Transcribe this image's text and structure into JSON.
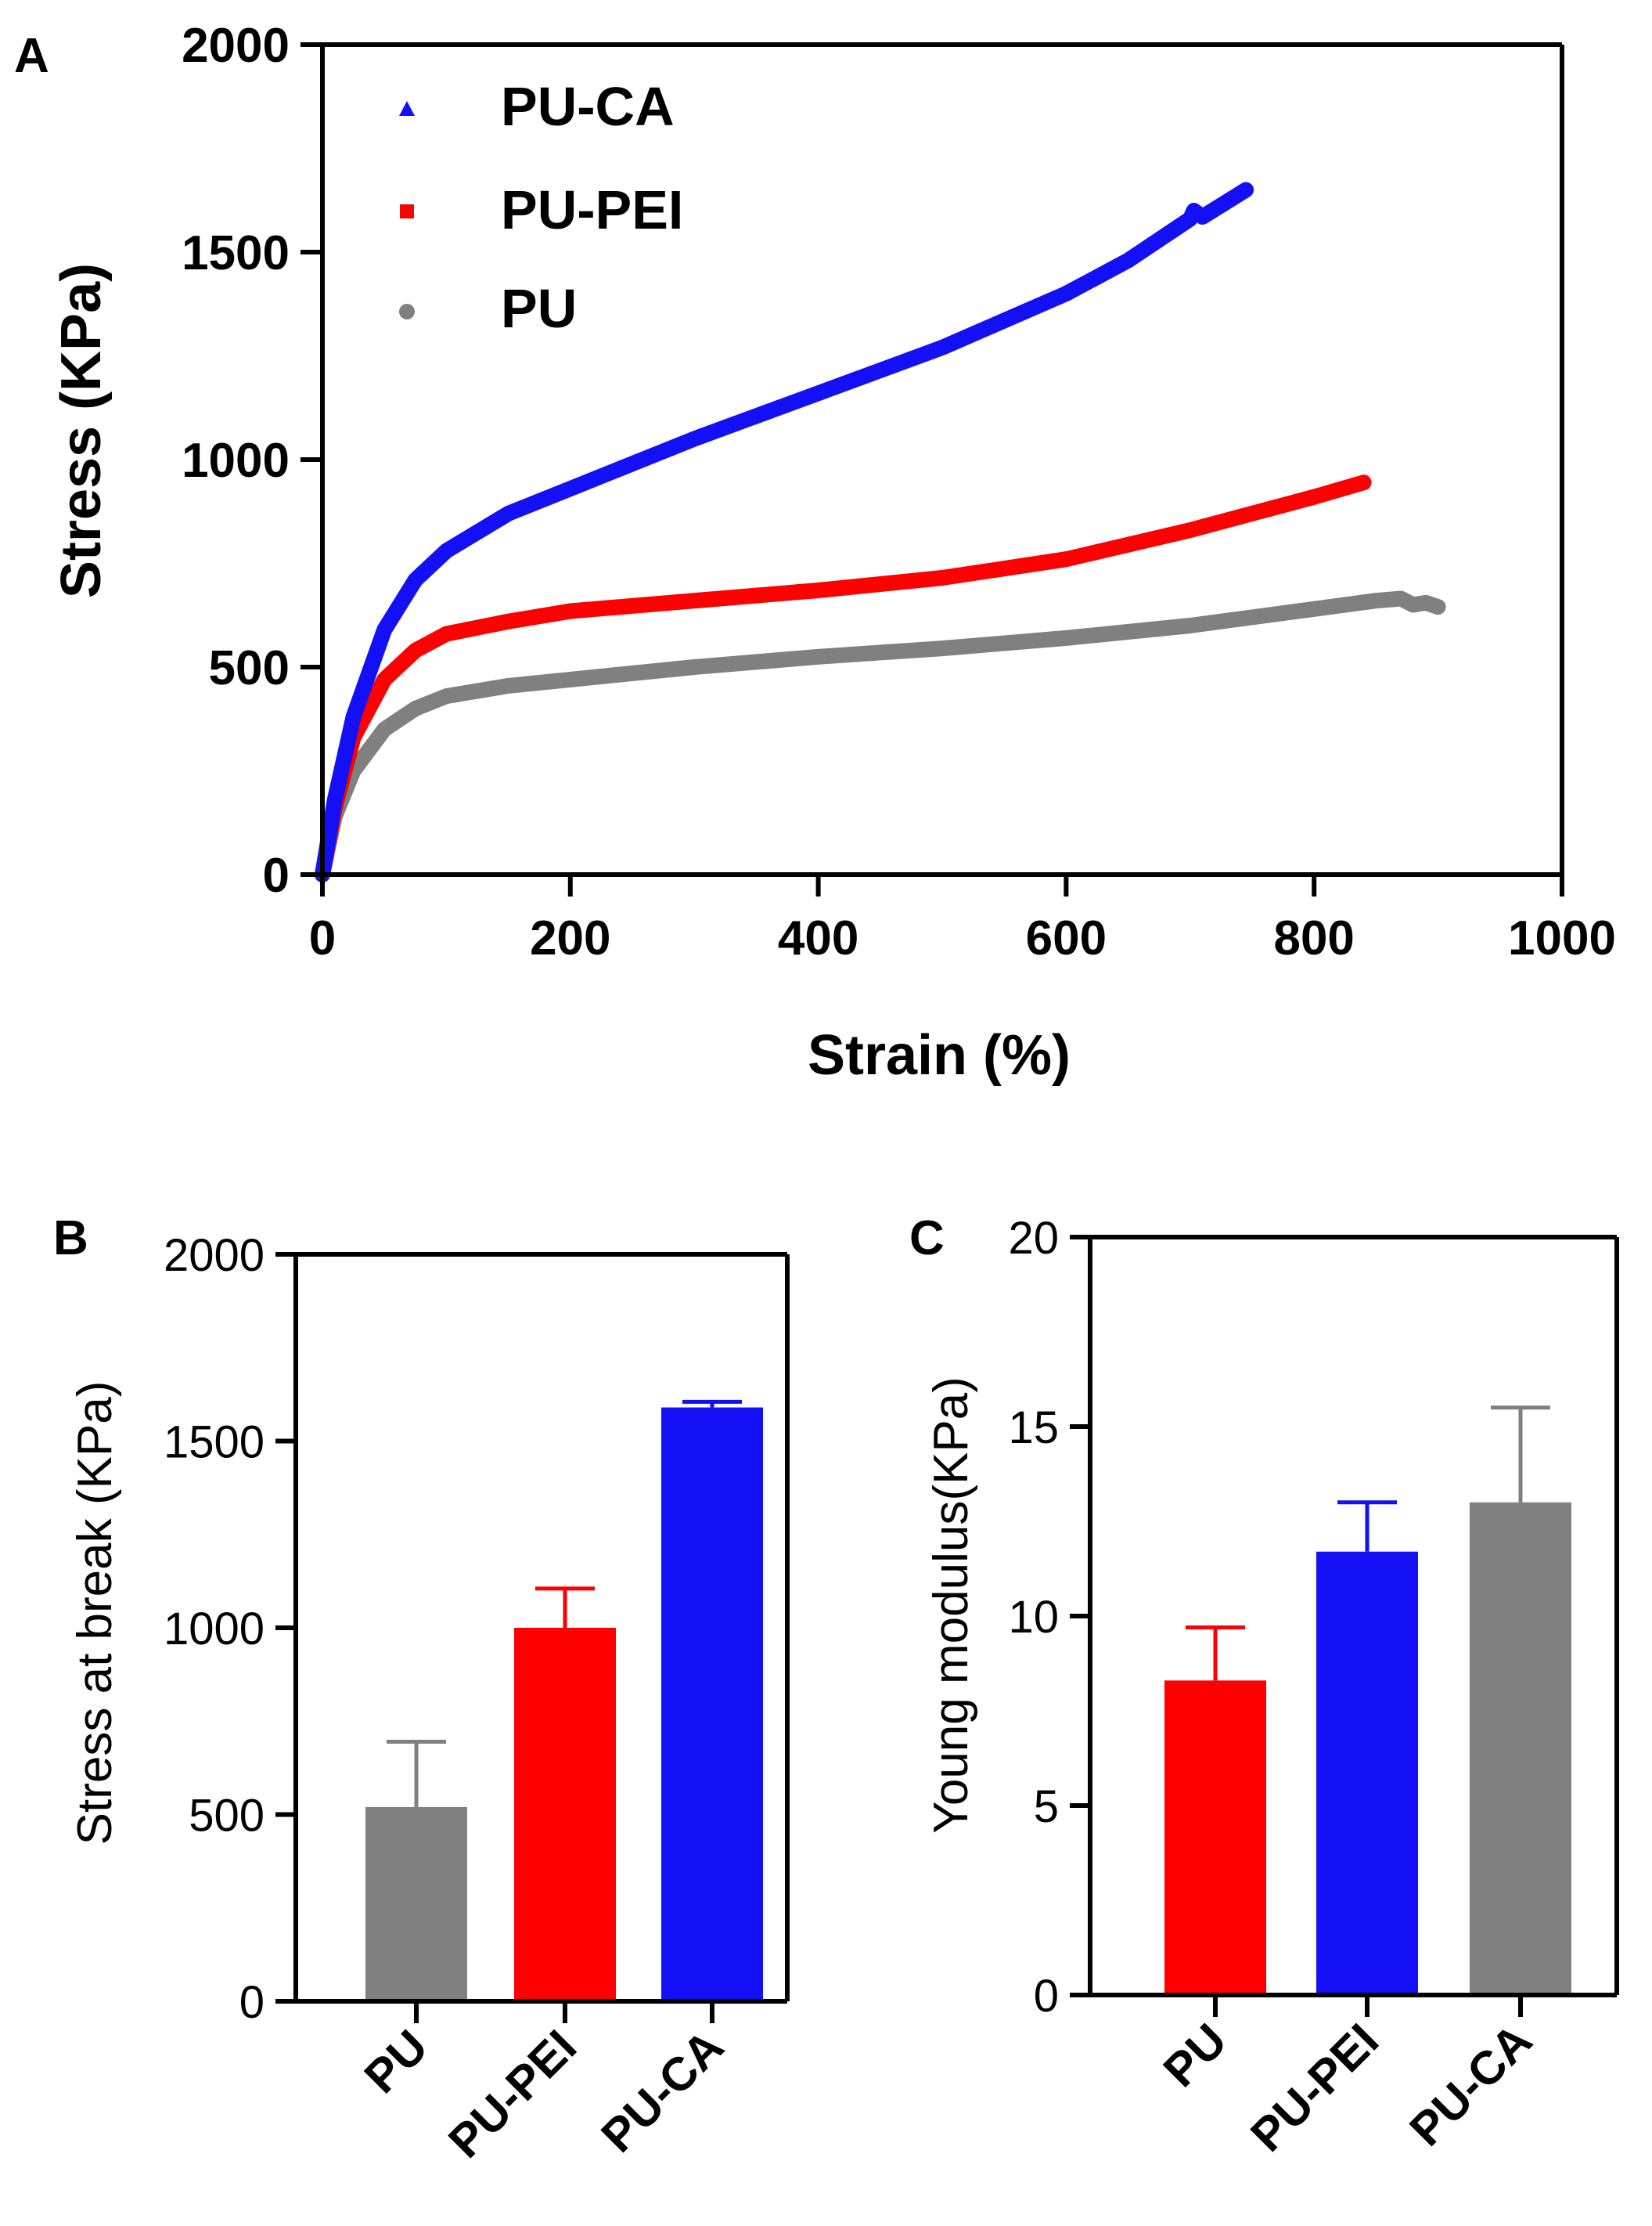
{
  "colors": {
    "blue": "#1410f5",
    "red": "#ff0000",
    "gray": "#808080",
    "axis": "#000000"
  },
  "chart_data": [
    {
      "panel": "A",
      "type": "line",
      "title": "",
      "xlabel": "Strain (%)",
      "ylabel": "Stress (KPa)",
      "xlim": [
        0,
        1000
      ],
      "ylim": [
        0,
        2000
      ],
      "xticks": [
        0,
        200,
        400,
        600,
        800,
        1000
      ],
      "yticks": [
        0,
        500,
        1000,
        1500,
        2000
      ],
      "legend_position": "top-left",
      "series": [
        {
          "name": "PU-CA",
          "color": "blue",
          "marker": "triangle",
          "x": [
            0,
            10,
            25,
            50,
            75,
            100,
            150,
            200,
            300,
            400,
            500,
            600,
            650,
            700,
            703,
            710,
            745
          ],
          "y": [
            0,
            180,
            380,
            590,
            710,
            780,
            870,
            930,
            1050,
            1160,
            1270,
            1400,
            1480,
            1580,
            1600,
            1585,
            1650
          ]
        },
        {
          "name": "PU-PEI",
          "color": "red",
          "marker": "square",
          "x": [
            0,
            10,
            25,
            50,
            75,
            100,
            150,
            200,
            300,
            400,
            500,
            600,
            700,
            750,
            800,
            840
          ],
          "y": [
            0,
            160,
            330,
            470,
            540,
            580,
            610,
            635,
            660,
            685,
            715,
            760,
            830,
            870,
            910,
            945
          ]
        },
        {
          "name": "PU",
          "color": "gray",
          "marker": "circle",
          "x": [
            0,
            10,
            25,
            50,
            75,
            100,
            150,
            200,
            300,
            400,
            500,
            600,
            700,
            800,
            850,
            870,
            880,
            890,
            900
          ],
          "y": [
            0,
            140,
            250,
            350,
            400,
            430,
            455,
            470,
            500,
            525,
            545,
            570,
            600,
            640,
            660,
            665,
            650,
            655,
            645
          ]
        }
      ]
    },
    {
      "panel": "B",
      "type": "bar",
      "ylabel": "Stress at break (KPa)",
      "ylim": [
        0,
        2000
      ],
      "yticks": [
        0,
        500,
        1000,
        1500,
        2000
      ],
      "categories": [
        "PU",
        "PU-PEI",
        "PU-CA"
      ],
      "values": [
        520,
        1000,
        1590
      ],
      "errors": [
        175,
        105,
        15
      ],
      "bar_colors": [
        "gray",
        "red",
        "blue"
      ]
    },
    {
      "panel": "C",
      "type": "bar",
      "ylabel": "Young modulus(KPa)",
      "ylim": [
        0,
        20
      ],
      "yticks": [
        0,
        5,
        10,
        15,
        20
      ],
      "categories": [
        "PU",
        "PU-PEI",
        "PU-CA"
      ],
      "values": [
        8.3,
        11.7,
        13.0
      ],
      "errors": [
        1.4,
        1.3,
        2.5
      ],
      "bar_colors": [
        "red",
        "blue",
        "gray"
      ]
    }
  ]
}
